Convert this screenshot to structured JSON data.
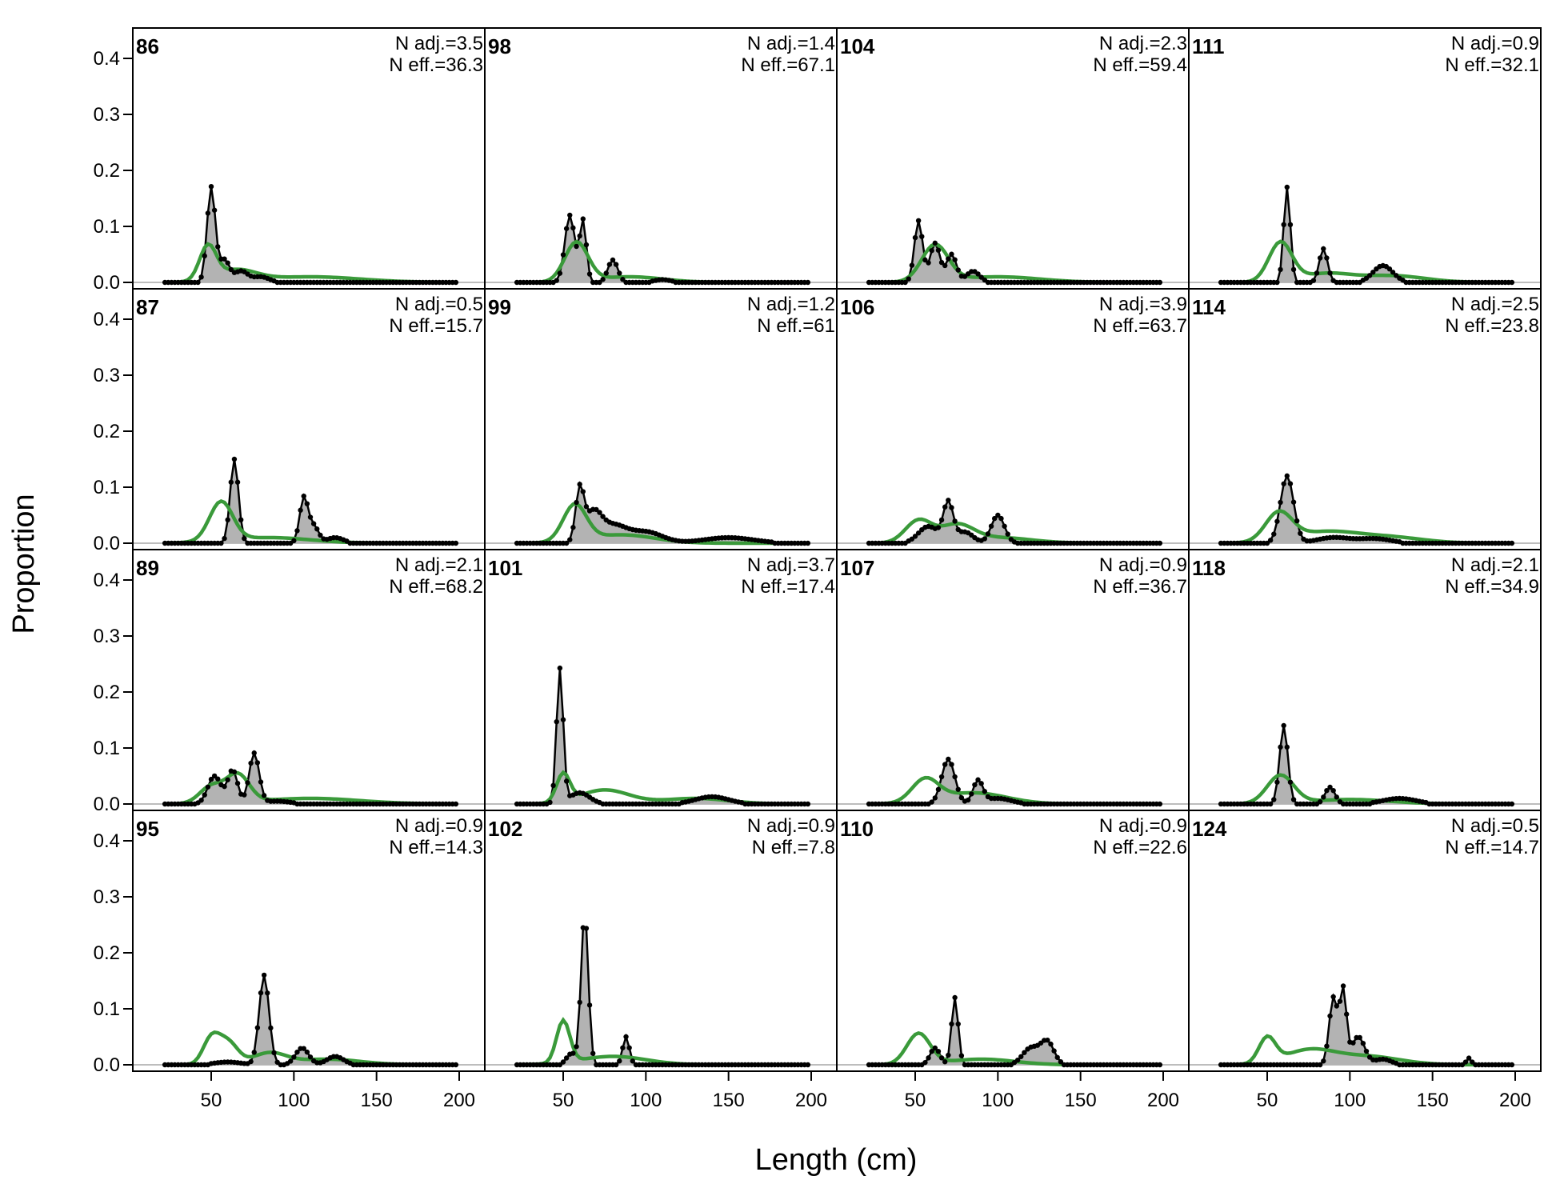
{
  "chart_data": {
    "type": "area",
    "xlabel": "Length (cm)",
    "ylabel": "Proportion",
    "xlim": [
      20,
      200
    ],
    "ylim": [
      0,
      0.45
    ],
    "x_ticks": [
      50,
      100,
      150,
      200
    ],
    "y_ticks": [
      0.0,
      0.1,
      0.2,
      0.3,
      0.4
    ],
    "y_tick_labels": [
      "0.0",
      "0.1",
      "0.2",
      "0.3",
      "0.4"
    ],
    "colors": {
      "observed_fill": "#b3b3b3",
      "observed_line": "#000000",
      "expected_line": "#3a9a3a",
      "zero_line": "#bdbdbd"
    },
    "series_roles": {
      "observed": "black points with grey fill",
      "expected": "green line"
    },
    "panels": [
      {
        "label": "86",
        "n_adj": "N adj.=3.5",
        "n_eff": "N eff.=36.3",
        "obs_peaks": [
          [
            50,
            0.17,
            2.5
          ],
          [
            58,
            0.04,
            3
          ],
          [
            68,
            0.02,
            4
          ],
          [
            80,
            0.01,
            5
          ]
        ],
        "exp_peaks": [
          [
            48,
            0.06,
            5
          ],
          [
            65,
            0.02,
            12
          ],
          [
            110,
            0.01,
            30
          ]
        ]
      },
      {
        "label": "98",
        "n_adj": "N adj.=1.4",
        "n_eff": "N eff.=67.1",
        "obs_peaks": [
          [
            54,
            0.12,
            3
          ],
          [
            62,
            0.11,
            2
          ],
          [
            80,
            0.04,
            3
          ],
          [
            110,
            0.005,
            5
          ]
        ],
        "exp_peaks": [
          [
            58,
            0.07,
            7
          ],
          [
            90,
            0.01,
            20
          ]
        ]
      },
      {
        "label": "104",
        "n_adj": "N adj.=2.3",
        "n_eff": "N eff.=59.4",
        "obs_peaks": [
          [
            52,
            0.11,
            2.5
          ],
          [
            62,
            0.07,
            3
          ],
          [
            72,
            0.05,
            3
          ],
          [
            85,
            0.02,
            4
          ]
        ],
        "exp_peaks": [
          [
            62,
            0.065,
            8
          ],
          [
            100,
            0.01,
            25
          ]
        ]
      },
      {
        "label": "111",
        "n_adj": "N adj.=0.9",
        "n_eff": "N eff.=32.1",
        "obs_peaks": [
          [
            62,
            0.17,
            2
          ],
          [
            84,
            0.06,
            2.5
          ],
          [
            120,
            0.03,
            6
          ]
        ],
        "exp_peaks": [
          [
            58,
            0.07,
            7
          ],
          [
            85,
            0.015,
            15
          ],
          [
            125,
            0.012,
            20
          ]
        ]
      },
      {
        "label": "87",
        "n_adj": "N adj.=0.5",
        "n_eff": "N eff.=15.7",
        "obs_peaks": [
          [
            64,
            0.15,
            2.5
          ],
          [
            106,
            0.08,
            2.5
          ],
          [
            112,
            0.03,
            3
          ],
          [
            125,
            0.01,
            5
          ]
        ],
        "exp_peaks": [
          [
            56,
            0.07,
            7
          ],
          [
            85,
            0.01,
            25
          ]
        ]
      },
      {
        "label": "99",
        "n_adj": "N adj.=1.2",
        "n_eff": "N eff.=61",
        "obs_peaks": [
          [
            60,
            0.09,
            2.5
          ],
          [
            68,
            0.05,
            5
          ],
          [
            80,
            0.03,
            8
          ],
          [
            100,
            0.02,
            10
          ],
          [
            150,
            0.01,
            15
          ]
        ],
        "exp_peaks": [
          [
            57,
            0.065,
            7
          ],
          [
            85,
            0.015,
            20
          ]
        ]
      },
      {
        "label": "106",
        "n_adj": "N adj.=3.9",
        "n_eff": "N eff.=63.7",
        "obs_peaks": [
          [
            58,
            0.03,
            6
          ],
          [
            70,
            0.07,
            3
          ],
          [
            80,
            0.02,
            5
          ],
          [
            100,
            0.05,
            4
          ]
        ],
        "exp_peaks": [
          [
            52,
            0.04,
            8
          ],
          [
            75,
            0.03,
            10
          ],
          [
            100,
            0.01,
            20
          ]
        ]
      },
      {
        "label": "114",
        "n_adj": "N adj.=2.5",
        "n_eff": "N eff.=23.8",
        "obs_peaks": [
          [
            62,
            0.12,
            4
          ],
          [
            90,
            0.01,
            10
          ],
          [
            115,
            0.008,
            10
          ]
        ],
        "exp_peaks": [
          [
            57,
            0.05,
            8
          ],
          [
            85,
            0.02,
            20
          ],
          [
            125,
            0.01,
            20
          ]
        ]
      },
      {
        "label": "89",
        "n_adj": "N adj.=2.1",
        "n_eff": "N eff.=68.2",
        "obs_peaks": [
          [
            52,
            0.05,
            4
          ],
          [
            63,
            0.06,
            3
          ],
          [
            76,
            0.09,
            3
          ],
          [
            90,
            0.005,
            8
          ]
        ],
        "exp_peaks": [
          [
            50,
            0.03,
            7
          ],
          [
            66,
            0.05,
            7
          ],
          [
            110,
            0.01,
            30
          ]
        ]
      },
      {
        "label": "101",
        "n_adj": "N adj.=3.7",
        "n_eff": "N eff.=17.4",
        "obs_peaks": [
          [
            48,
            0.24,
            2
          ],
          [
            60,
            0.02,
            6
          ],
          [
            140,
            0.013,
            10
          ]
        ],
        "exp_peaks": [
          [
            50,
            0.05,
            4
          ],
          [
            75,
            0.025,
            15
          ],
          [
            130,
            0.01,
            20
          ]
        ]
      },
      {
        "label": "107",
        "n_adj": "N adj.=0.9",
        "n_eff": "N eff.=36.7",
        "obs_peaks": [
          [
            70,
            0.08,
            4
          ],
          [
            88,
            0.04,
            3
          ],
          [
            100,
            0.01,
            8
          ]
        ],
        "exp_peaks": [
          [
            56,
            0.04,
            8
          ],
          [
            85,
            0.02,
            20
          ]
        ]
      },
      {
        "label": "118",
        "n_adj": "N adj.=2.1",
        "n_eff": "N eff.=34.9",
        "obs_peaks": [
          [
            60,
            0.14,
            2.5
          ],
          [
            88,
            0.03,
            3
          ],
          [
            130,
            0.01,
            10
          ]
        ],
        "exp_peaks": [
          [
            58,
            0.05,
            8
          ],
          [
            100,
            0.008,
            25
          ]
        ]
      },
      {
        "label": "95",
        "n_adj": "N adj.=0.9",
        "n_eff": "N eff.=14.3",
        "obs_peaks": [
          [
            60,
            0.005,
            8
          ],
          [
            82,
            0.16,
            3
          ],
          [
            105,
            0.03,
            4
          ],
          [
            125,
            0.015,
            5
          ]
        ],
        "exp_peaks": [
          [
            50,
            0.045,
            5
          ],
          [
            60,
            0.04,
            6
          ],
          [
            85,
            0.02,
            10
          ],
          [
            120,
            0.01,
            20
          ]
        ]
      },
      {
        "label": "102",
        "n_adj": "N adj.=0.9",
        "n_eff": "N eff.=7.8",
        "obs_peaks": [
          [
            55,
            0.02,
            3
          ],
          [
            63,
            0.27,
            2.2
          ],
          [
            88,
            0.05,
            2
          ]
        ],
        "exp_peaks": [
          [
            50,
            0.075,
            4
          ],
          [
            80,
            0.015,
            20
          ]
        ]
      },
      {
        "label": "110",
        "n_adj": "N adj.=0.9",
        "n_eff": "N eff.=22.6",
        "obs_peaks": [
          [
            62,
            0.03,
            3
          ],
          [
            74,
            0.12,
            2
          ],
          [
            120,
            0.03,
            5
          ],
          [
            130,
            0.04,
            4
          ]
        ],
        "exp_peaks": [
          [
            52,
            0.055,
            7
          ],
          [
            90,
            0.01,
            20
          ]
        ]
      },
      {
        "label": "124",
        "n_adj": "N adj.=0.5",
        "n_eff": "N eff.=14.7",
        "obs_peaks": [
          [
            90,
            0.12,
            2.5
          ],
          [
            96,
            0.13,
            2
          ],
          [
            105,
            0.05,
            4
          ],
          [
            120,
            0.01,
            5
          ],
          [
            172,
            0.012,
            1.5
          ]
        ],
        "exp_peaks": [
          [
            50,
            0.045,
            5
          ],
          [
            75,
            0.025,
            15
          ],
          [
            110,
            0.015,
            20
          ]
        ]
      }
    ]
  }
}
